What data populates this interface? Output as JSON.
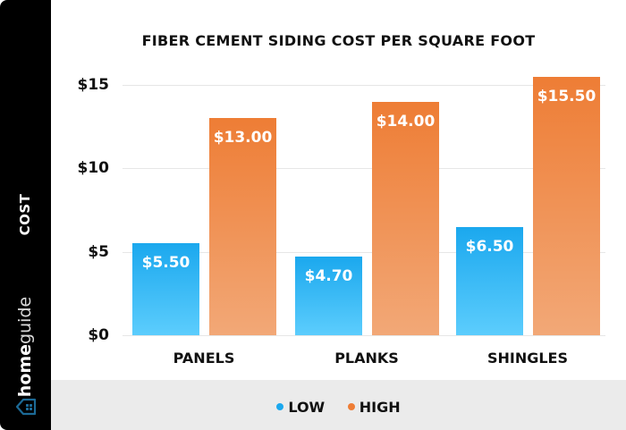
{
  "sidebar": {
    "axis_label": "COST",
    "brand_bold": "home",
    "brand_light": "guide",
    "logo_icon": "house-icon"
  },
  "colors": {
    "low": "#1ba8ee",
    "high": "#ee7d35",
    "sidebar": "#000000",
    "legend_band": "#ebebeb"
  },
  "chart_data": {
    "type": "bar",
    "title": "FIBER CEMENT SIDING COST PER SQUARE FOOT",
    "xlabel": "",
    "ylabel": "COST",
    "categories": [
      "PANELS",
      "PLANKS",
      "SHINGLES"
    ],
    "series": [
      {
        "name": "LOW",
        "values": [
          5.5,
          4.7,
          6.5
        ],
        "labels": [
          "$5.50",
          "$4.70",
          "$6.50"
        ]
      },
      {
        "name": "HIGH",
        "values": [
          13.0,
          14.0,
          15.5
        ],
        "labels": [
          "$13.00",
          "$14.00",
          "$15.50"
        ]
      }
    ],
    "yticks": [
      "$0",
      "$5",
      "$10",
      "$15"
    ],
    "ylim": [
      0,
      15.5
    ],
    "grid": true,
    "legend_position": "bottom"
  }
}
